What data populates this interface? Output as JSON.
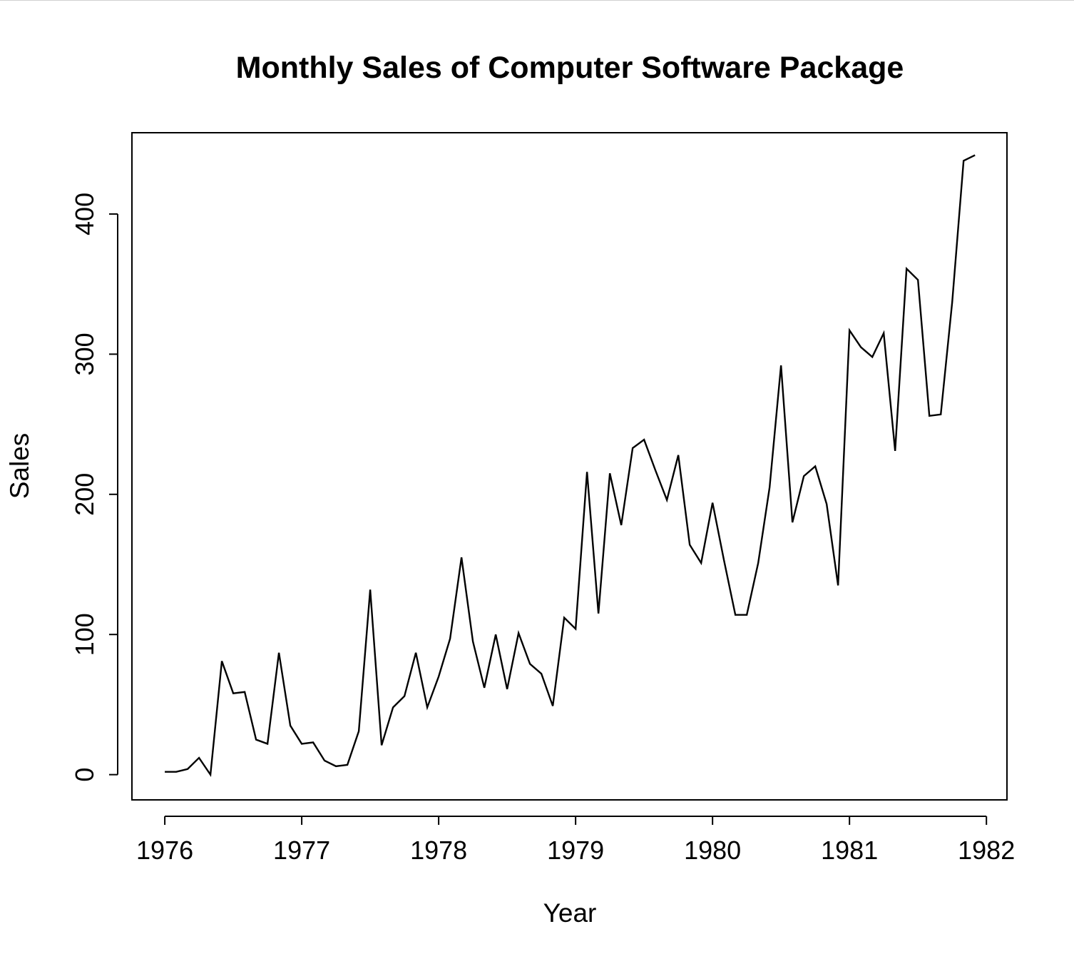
{
  "chart_data": {
    "type": "line",
    "title": "Monthly Sales of Computer Software Package",
    "xlabel": "Year",
    "ylabel": "Sales",
    "x_start": 1976,
    "x_step": 0.08333333,
    "xlim": [
      1975.76,
      1982.15
    ],
    "ylim": [
      -18,
      458
    ],
    "x_ticks": [
      1976,
      1977,
      1978,
      1979,
      1980,
      1981,
      1982
    ],
    "x_tick_labels": [
      "1976",
      "1977",
      "1978",
      "1979",
      "1980",
      "1981",
      "1982"
    ],
    "y_ticks": [
      0,
      100,
      200,
      300,
      400
    ],
    "y_tick_labels": [
      "0",
      "100",
      "200",
      "300",
      "400"
    ],
    "grid": false,
    "line_color": "#000000",
    "series": [
      {
        "values": [
          2,
          2,
          4,
          12,
          0,
          81,
          58,
          59,
          25,
          22,
          87,
          35,
          22,
          23,
          10,
          6,
          7,
          31,
          132,
          21,
          48,
          56,
          87,
          48,
          70,
          97,
          155,
          95,
          62,
          100,
          61,
          101,
          79,
          72,
          49,
          112,
          104,
          216,
          115,
          215,
          178,
          233,
          239,
          217,
          196,
          228,
          164,
          151,
          194,
          153,
          114,
          114,
          151,
          205,
          292,
          180,
          213,
          220,
          193,
          135,
          317,
          305,
          298,
          315,
          231,
          361,
          353,
          256,
          257,
          337,
          438,
          442
        ]
      }
    ]
  }
}
